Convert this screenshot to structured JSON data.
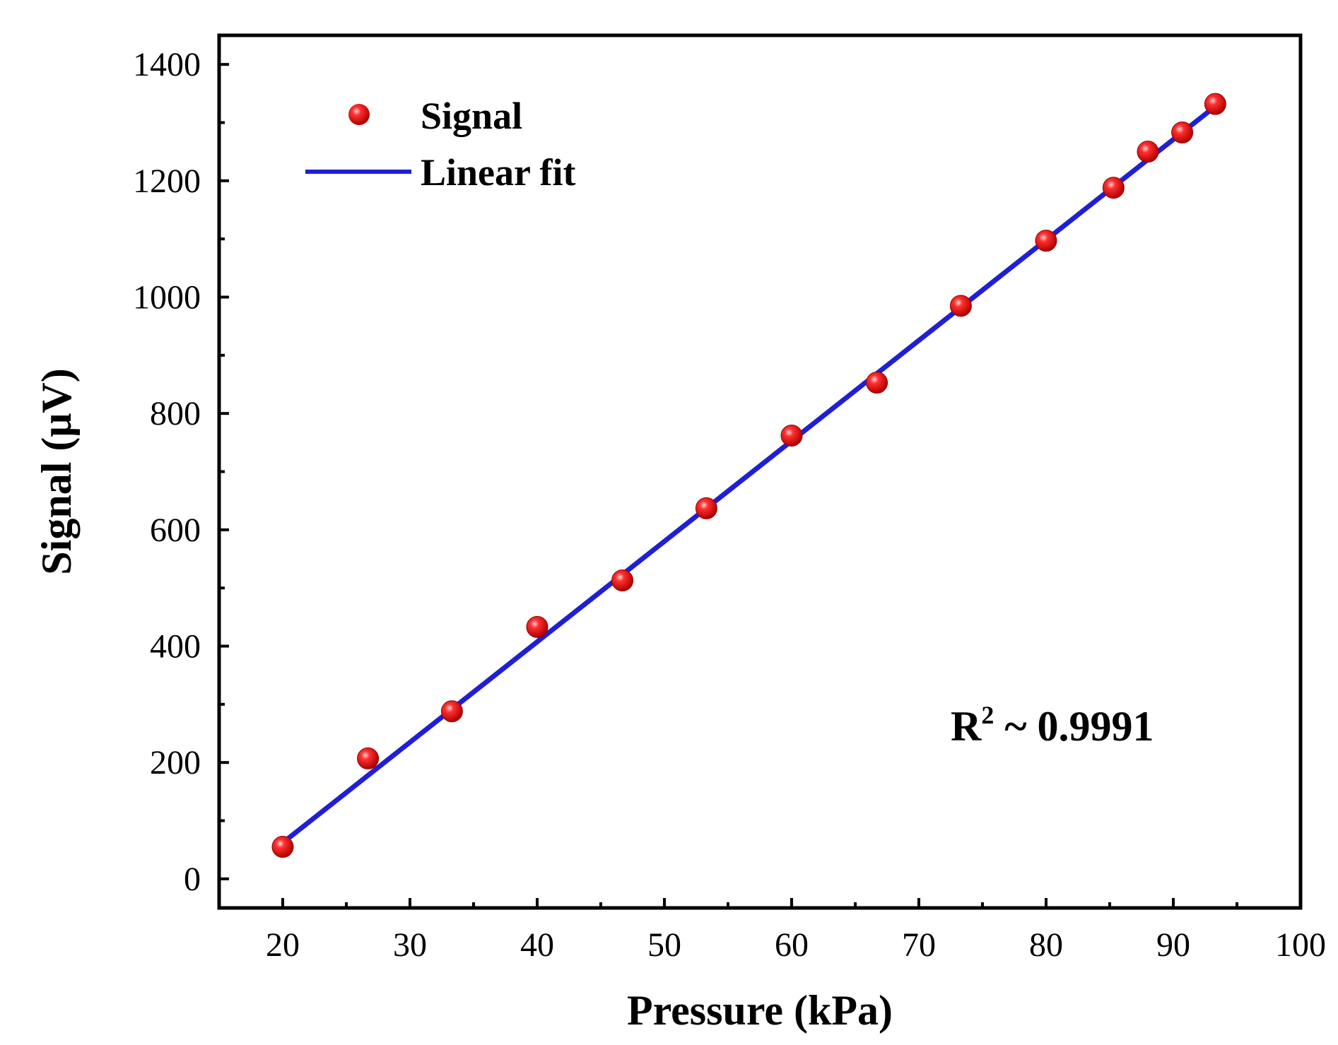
{
  "chart_data": {
    "type": "scatter",
    "xlabel": "Pressure (kPa)",
    "ylabel": "Signal (μV)",
    "xlim": [
      15,
      100
    ],
    "ylim": [
      -50,
      1450
    ],
    "x_ticks": [
      "20",
      "30",
      "40",
      "50",
      "60",
      "70",
      "80",
      "90",
      "100"
    ],
    "y_ticks": [
      "0",
      "200",
      "400",
      "600",
      "800",
      "1000",
      "1200",
      "1400"
    ],
    "series": [
      {
        "name": "Signal",
        "kind": "scatter",
        "color": "#ff0000",
        "x": [
          20,
          26.7,
          33.3,
          40,
          46.7,
          53.3,
          60,
          66.7,
          73.3,
          80,
          85.3,
          88,
          90.7,
          93.3
        ],
        "y": [
          55,
          207,
          288,
          433,
          513,
          637,
          762,
          853,
          985,
          1097,
          1188,
          1250,
          1283,
          1332
        ]
      },
      {
        "name": "Linear fit",
        "kind": "line",
        "color": "#1f1fd6",
        "x": [
          20,
          93.3
        ],
        "y": [
          62,
          1328
        ]
      }
    ],
    "legend": {
      "position": "top-left",
      "entries": [
        "Signal",
        "Linear fit"
      ]
    },
    "annotation": {
      "main": "R",
      "sup": "2",
      "rest": " ~ 0.9991"
    }
  }
}
